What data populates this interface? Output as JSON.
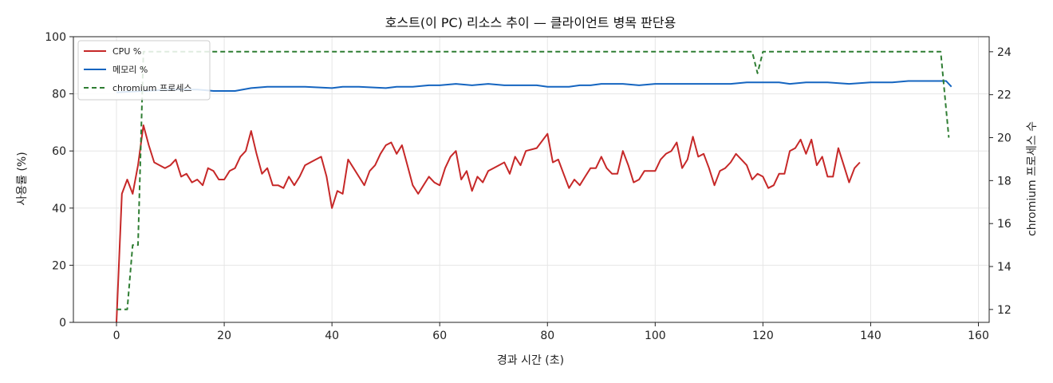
{
  "chart_data": {
    "type": "line",
    "title": "호스트(이 PC) 리소스 추이 — 클라이언트 병목 판단용",
    "xlabel": "경과 시간 (초)",
    "ylabel": "사용률 (%)",
    "y2label": "chromium 프로세스 수",
    "xlim": [
      -8,
      162
    ],
    "ylim": [
      0,
      100
    ],
    "y2lim": [
      11.4,
      24.7
    ],
    "x_ticks": [
      0,
      20,
      40,
      60,
      80,
      100,
      120,
      140,
      160
    ],
    "y_ticks": [
      0,
      20,
      40,
      60,
      80,
      100
    ],
    "y2_ticks": [
      12,
      14,
      16,
      18,
      20,
      22,
      24
    ],
    "grid": true,
    "legend_position": "top-left",
    "series": [
      {
        "name": "CPU %",
        "axis": "left",
        "color": "#c62828",
        "style": "solid",
        "points": [
          [
            0,
            0
          ],
          [
            1,
            45
          ],
          [
            2,
            50
          ],
          [
            3,
            45
          ],
          [
            4,
            55
          ],
          [
            5,
            69
          ],
          [
            6,
            62
          ],
          [
            7,
            56
          ],
          [
            8,
            55
          ],
          [
            9,
            54
          ],
          [
            10,
            55
          ],
          [
            11,
            57
          ],
          [
            12,
            51
          ],
          [
            13,
            52
          ],
          [
            14,
            49
          ],
          [
            15,
            50
          ],
          [
            16,
            48
          ],
          [
            17,
            54
          ],
          [
            18,
            53
          ],
          [
            19,
            50
          ],
          [
            20,
            50
          ],
          [
            21,
            53
          ],
          [
            22,
            54
          ],
          [
            23,
            58
          ],
          [
            24,
            60
          ],
          [
            25,
            67
          ],
          [
            26,
            59
          ],
          [
            27,
            52
          ],
          [
            28,
            54
          ],
          [
            29,
            48
          ],
          [
            30,
            48
          ],
          [
            31,
            47
          ],
          [
            32,
            51
          ],
          [
            33,
            48
          ],
          [
            34,
            51
          ],
          [
            35,
            55
          ],
          [
            36,
            56
          ],
          [
            37,
            57
          ],
          [
            38,
            58
          ],
          [
            39,
            51
          ],
          [
            40,
            40
          ],
          [
            41,
            46
          ],
          [
            42,
            45
          ],
          [
            43,
            57
          ],
          [
            44,
            54
          ],
          [
            45,
            51
          ],
          [
            46,
            48
          ],
          [
            47,
            53
          ],
          [
            48,
            55
          ],
          [
            49,
            59
          ],
          [
            50,
            62
          ],
          [
            51,
            63
          ],
          [
            52,
            59
          ],
          [
            53,
            62
          ],
          [
            54,
            55
          ],
          [
            55,
            48
          ],
          [
            56,
            45
          ],
          [
            57,
            48
          ],
          [
            58,
            51
          ],
          [
            59,
            49
          ],
          [
            60,
            48
          ],
          [
            61,
            54
          ],
          [
            62,
            58
          ],
          [
            63,
            60
          ],
          [
            64,
            50
          ],
          [
            65,
            53
          ],
          [
            66,
            46
          ],
          [
            67,
            51
          ],
          [
            68,
            49
          ],
          [
            69,
            53
          ],
          [
            70,
            54
          ],
          [
            71,
            55
          ],
          [
            72,
            56
          ],
          [
            73,
            52
          ],
          [
            74,
            58
          ],
          [
            75,
            55
          ],
          [
            76,
            60
          ],
          [
            78,
            61
          ],
          [
            80,
            66
          ],
          [
            81,
            56
          ],
          [
            82,
            57
          ],
          [
            83,
            52
          ],
          [
            84,
            47
          ],
          [
            85,
            50
          ],
          [
            86,
            48
          ],
          [
            87,
            51
          ],
          [
            88,
            54
          ],
          [
            89,
            54
          ],
          [
            90,
            58
          ],
          [
            91,
            54
          ],
          [
            92,
            52
          ],
          [
            93,
            52
          ],
          [
            94,
            60
          ],
          [
            95,
            55
          ],
          [
            96,
            49
          ],
          [
            97,
            50
          ],
          [
            98,
            53
          ],
          [
            99,
            53
          ],
          [
            100,
            53
          ],
          [
            101,
            57
          ],
          [
            102,
            59
          ],
          [
            103,
            60
          ],
          [
            104,
            63
          ],
          [
            105,
            54
          ],
          [
            106,
            57
          ],
          [
            107,
            65
          ],
          [
            108,
            58
          ],
          [
            109,
            59
          ],
          [
            110,
            54
          ],
          [
            111,
            48
          ],
          [
            112,
            53
          ],
          [
            113,
            54
          ],
          [
            114,
            56
          ],
          [
            115,
            59
          ],
          [
            116,
            57
          ],
          [
            117,
            55
          ],
          [
            118,
            50
          ],
          [
            119,
            52
          ],
          [
            120,
            51
          ],
          [
            121,
            47
          ],
          [
            122,
            48
          ],
          [
            123,
            52
          ],
          [
            124,
            52
          ],
          [
            125,
            60
          ],
          [
            126,
            61
          ],
          [
            127,
            64
          ],
          [
            128,
            59
          ],
          [
            129,
            64
          ],
          [
            130,
            55
          ],
          [
            131,
            58
          ],
          [
            132,
            51
          ],
          [
            133,
            51
          ],
          [
            134,
            61
          ],
          [
            135,
            55
          ],
          [
            136,
            49
          ],
          [
            137,
            54
          ],
          [
            138,
            56
          ]
        ]
      },
      {
        "name": "메모리 %",
        "axis": "left",
        "color": "#1565c0",
        "style": "solid",
        "points": [
          [
            0,
            80.5
          ],
          [
            5,
            81
          ],
          [
            10,
            81.5
          ],
          [
            15,
            81.5
          ],
          [
            18,
            81
          ],
          [
            20,
            81
          ],
          [
            22,
            81
          ],
          [
            25,
            82
          ],
          [
            28,
            82.5
          ],
          [
            30,
            82.5
          ],
          [
            35,
            82.5
          ],
          [
            40,
            82
          ],
          [
            42,
            82.5
          ],
          [
            45,
            82.5
          ],
          [
            50,
            82
          ],
          [
            52,
            82.5
          ],
          [
            55,
            82.5
          ],
          [
            58,
            83
          ],
          [
            60,
            83
          ],
          [
            63,
            83.5
          ],
          [
            66,
            83
          ],
          [
            69,
            83.5
          ],
          [
            72,
            83
          ],
          [
            75,
            83
          ],
          [
            78,
            83
          ],
          [
            80,
            82.5
          ],
          [
            82,
            82.5
          ],
          [
            84,
            82.5
          ],
          [
            86,
            83
          ],
          [
            88,
            83
          ],
          [
            90,
            83.5
          ],
          [
            94,
            83.5
          ],
          [
            97,
            83
          ],
          [
            100,
            83.5
          ],
          [
            103,
            83.5
          ],
          [
            106,
            83.5
          ],
          [
            110,
            83.5
          ],
          [
            114,
            83.5
          ],
          [
            117,
            84
          ],
          [
            120,
            84
          ],
          [
            123,
            84
          ],
          [
            125,
            83.5
          ],
          [
            128,
            84
          ],
          [
            132,
            84
          ],
          [
            136,
            83.5
          ],
          [
            140,
            84
          ],
          [
            144,
            84
          ],
          [
            147,
            84.5
          ],
          [
            150,
            84.5
          ],
          [
            152,
            84.5
          ],
          [
            154,
            84.5
          ],
          [
            155,
            82.5
          ]
        ]
      },
      {
        "name": "chromium 프로세스",
        "axis": "right",
        "color": "#2e7d32",
        "style": "dashed",
        "points": [
          [
            0,
            12
          ],
          [
            2,
            12
          ],
          [
            3,
            15
          ],
          [
            4,
            15
          ],
          [
            5,
            24
          ],
          [
            118,
            24
          ],
          [
            119,
            23
          ],
          [
            120,
            24
          ],
          [
            153,
            24
          ],
          [
            154.5,
            20
          ]
        ]
      }
    ]
  }
}
